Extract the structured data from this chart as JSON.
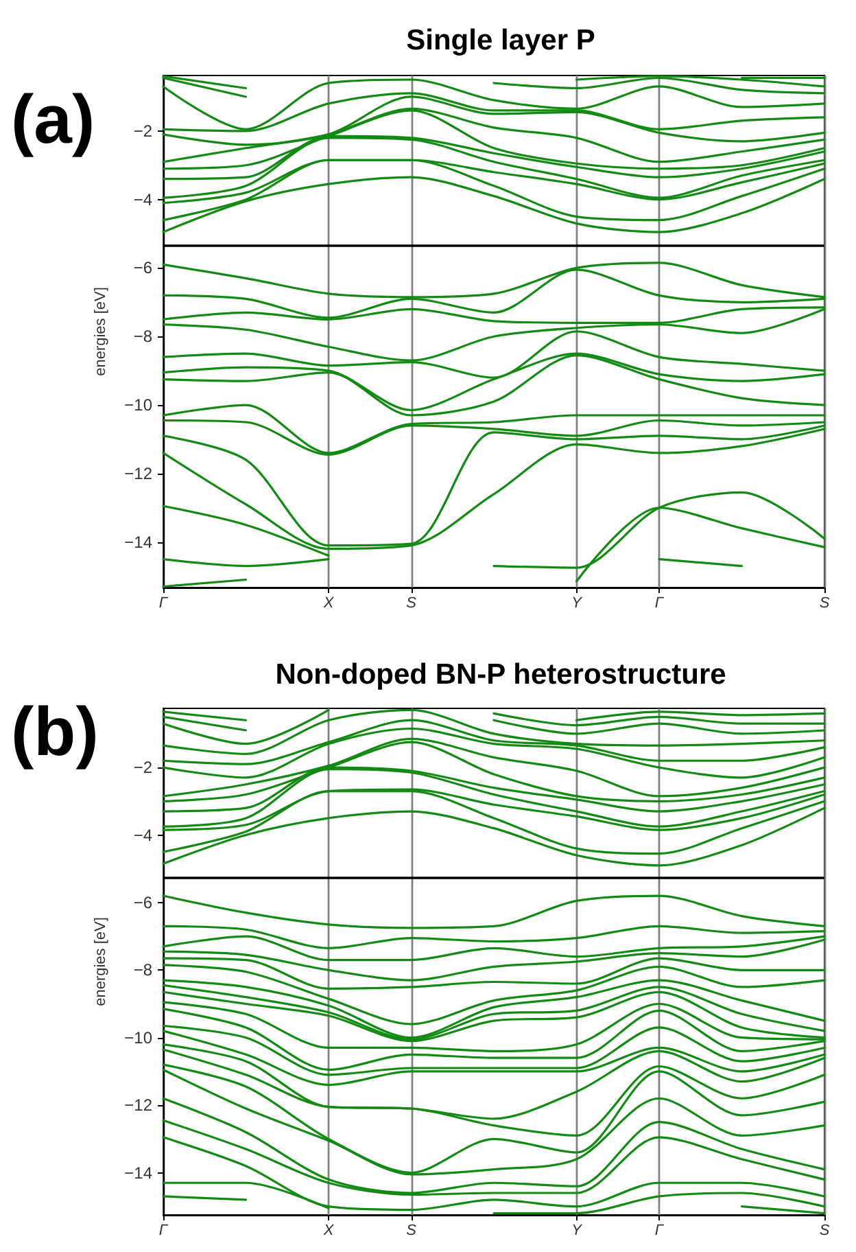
{
  "chart_data": [
    {
      "type": "line",
      "title": "Single layer P",
      "ylabel": "energies [eV]",
      "annotations": [
        "(a)"
      ],
      "marker": "none",
      "grid": "x",
      "categories": [
        "Γ",
        null,
        "X",
        "S",
        null,
        "Y",
        "Γ",
        null,
        "S"
      ],
      "ylim": [
        -15.33,
        -0.38
      ],
      "yticks": [
        -14,
        -12,
        -10,
        -8,
        -6,
        -4,
        -2
      ],
      "ref_lines": [
        {
          "axis": "y",
          "value": -5.35,
          "color": "#000000"
        }
      ],
      "series": [
        {
          "color": "#138a13",
          "values": [
            -5.9,
            -6.3,
            -6.75,
            -6.85,
            -6.75,
            -6.0,
            -5.85,
            -6.5,
            -6.85
          ]
        },
        {
          "color": "#138a13",
          "values": [
            -6.8,
            -6.9,
            -7.45,
            -6.9,
            -7.3,
            -6.05,
            -6.8,
            -7.0,
            -6.9
          ]
        },
        {
          "color": "#138a13",
          "values": [
            -7.5,
            -7.3,
            -7.5,
            -7.2,
            -7.55,
            -7.6,
            -7.6,
            -7.2,
            -7.15
          ]
        },
        {
          "color": "#138a13",
          "values": [
            -7.65,
            -7.8,
            -8.3,
            -8.7,
            -8.0,
            -7.75,
            -7.65,
            -7.9,
            -7.2
          ]
        },
        {
          "color": "#138a13",
          "values": [
            -8.6,
            -8.5,
            -8.85,
            -8.75,
            -9.2,
            -7.85,
            -8.6,
            -8.8,
            -9.0
          ]
        },
        {
          "color": "#138a13",
          "values": [
            -9.05,
            -8.9,
            -9.0,
            -10.15,
            -9.25,
            -8.5,
            -9.1,
            -9.3,
            -9.1
          ]
        },
        {
          "color": "#138a13",
          "values": [
            -9.25,
            -9.3,
            -9.05,
            -10.3,
            -9.9,
            -8.55,
            -9.25,
            -9.8,
            -10.0
          ]
        },
        {
          "color": "#138a13",
          "values": [
            -10.3,
            -10.0,
            -11.4,
            -10.55,
            -10.5,
            -10.3,
            -10.3,
            -10.3,
            -10.3
          ]
        },
        {
          "color": "#138a13",
          "values": [
            -10.45,
            -10.5,
            -11.45,
            -10.6,
            -10.7,
            -10.9,
            -10.45,
            -10.6,
            -10.5
          ]
        },
        {
          "color": "#138a13",
          "values": [
            -10.9,
            -11.6,
            -14.1,
            -14.05,
            -10.8,
            -11.0,
            -10.9,
            -11.0,
            -10.6
          ]
        },
        {
          "color": "#138a13",
          "values": [
            -11.4,
            -12.9,
            -14.2,
            -14.1,
            -12.6,
            -11.15,
            -11.4,
            -11.2,
            -10.7
          ]
        },
        {
          "color": "#138a13",
          "values": [
            -12.95,
            -13.5,
            -14.4,
            null,
            -14.7,
            -14.75,
            -13.0,
            -12.55,
            -13.9
          ]
        },
        {
          "color": "#138a13",
          "values": [
            -14.5,
            -14.7,
            -14.5,
            null,
            null,
            -15.15,
            -13.0,
            -13.6,
            -14.15
          ]
        },
        {
          "color": "#138a13",
          "values": [
            -15.3,
            -15.1,
            null,
            null,
            null,
            null,
            -14.5,
            -14.7,
            null
          ]
        },
        {
          "color": "#138a13",
          "values": [
            -4.95,
            -4.05,
            -3.55,
            -3.35,
            -3.9,
            -4.7,
            -4.95,
            -4.4,
            -3.4
          ]
        },
        {
          "color": "#138a13",
          "values": [
            -4.6,
            -4.0,
            -2.85,
            -2.85,
            -3.6,
            -4.5,
            -4.6,
            -3.9,
            -3.1
          ]
        },
        {
          "color": "#138a13",
          "values": [
            -4.1,
            -3.8,
            -2.85,
            -2.85,
            -3.2,
            -3.55,
            -4.0,
            -3.5,
            -2.95
          ]
        },
        {
          "color": "#138a13",
          "values": [
            -3.95,
            -3.6,
            -2.2,
            -2.25,
            -2.9,
            -3.4,
            -3.95,
            -3.3,
            -2.85
          ]
        },
        {
          "color": "#138a13",
          "values": [
            -3.4,
            -3.35,
            -2.15,
            -2.2,
            -2.65,
            -3.05,
            -3.35,
            -3.1,
            -2.6
          ]
        },
        {
          "color": "#138a13",
          "values": [
            -3.1,
            -3.0,
            -2.15,
            -1.4,
            -2.5,
            -2.95,
            -3.1,
            -3.0,
            -2.5
          ]
        },
        {
          "color": "#138a13",
          "values": [
            -2.9,
            -2.5,
            -2.1,
            -1.35,
            -1.9,
            -2.2,
            -2.9,
            -2.6,
            -2.25
          ]
        },
        {
          "color": "#138a13",
          "values": [
            -2.1,
            -2.4,
            -2.1,
            -1.0,
            -1.5,
            -1.45,
            -2.05,
            -2.3,
            -2.05
          ]
        },
        {
          "color": "#138a13",
          "values": [
            -1.95,
            -2.0,
            -1.2,
            -0.9,
            -1.4,
            -1.4,
            -1.95,
            -1.7,
            -1.6
          ]
        },
        {
          "color": "#138a13",
          "values": [
            -0.7,
            -1.95,
            -0.6,
            -0.5,
            -1.1,
            -1.35,
            -0.7,
            -1.3,
            -1.2
          ]
        },
        {
          "color": "#138a13",
          "values": [
            -0.45,
            -1.0,
            null,
            null,
            -0.6,
            -0.75,
            -0.45,
            -0.8,
            -0.9
          ]
        },
        {
          "color": "#138a13",
          "values": [
            -0.4,
            -0.75,
            null,
            null,
            null,
            -0.5,
            -0.4,
            -0.5,
            -0.7
          ]
        },
        {
          "color": "#138a13",
          "values": [
            null,
            null,
            null,
            null,
            null,
            null,
            null,
            -0.45,
            -0.45
          ]
        }
      ]
    },
    {
      "type": "line",
      "title": "Non-doped BN-P heterostructure",
      "ylabel": "energies [eV]",
      "annotations": [
        "(b)"
      ],
      "marker": "none",
      "grid": "x",
      "categories": [
        "Γ",
        null,
        "X",
        "S",
        null,
        "Y",
        "Γ",
        null,
        "S"
      ],
      "ylim": [
        -15.25,
        -0.25
      ],
      "yticks": [
        -14,
        -12,
        -10,
        -8,
        -6,
        -4,
        -2
      ],
      "ref_lines": [
        {
          "axis": "y",
          "value": -5.27,
          "color": "#000000"
        }
      ],
      "series": [
        {
          "color": "#138a13",
          "values": [
            -5.8,
            -6.3,
            -6.65,
            -6.75,
            -6.7,
            -5.95,
            -5.8,
            -6.4,
            -6.7
          ]
        },
        {
          "color": "#138a13",
          "values": [
            -6.7,
            -6.8,
            -7.35,
            -7.05,
            -7.15,
            -7.05,
            -6.7,
            -6.9,
            -6.85
          ]
        },
        {
          "color": "#138a13",
          "values": [
            -7.3,
            -7.0,
            -7.7,
            -7.7,
            -7.35,
            -7.6,
            -7.35,
            -7.3,
            -7.0
          ]
        },
        {
          "color": "#138a13",
          "values": [
            -7.45,
            -7.55,
            -8.0,
            -8.3,
            -7.9,
            -7.75,
            -7.5,
            -7.6,
            -7.1
          ]
        },
        {
          "color": "#138a13",
          "values": [
            -7.65,
            -7.7,
            -8.55,
            -8.5,
            -8.35,
            -8.4,
            -7.65,
            -8.0,
            -8.0
          ]
        },
        {
          "color": "#138a13",
          "values": [
            -7.85,
            -8.05,
            -8.85,
            -9.6,
            -8.9,
            -8.6,
            -7.9,
            -8.5,
            -8.3
          ]
        },
        {
          "color": "#138a13",
          "values": [
            -8.3,
            -8.5,
            -9.05,
            -10.0,
            -9.1,
            -8.8,
            -8.3,
            -8.9,
            -9.5
          ]
        },
        {
          "color": "#138a13",
          "values": [
            -8.45,
            -8.8,
            -9.25,
            -10.05,
            -9.3,
            -9.2,
            -8.5,
            -9.3,
            -9.8
          ]
        },
        {
          "color": "#138a13",
          "values": [
            -8.65,
            -9.0,
            -9.35,
            -10.1,
            -9.5,
            -9.4,
            -8.65,
            -9.7,
            -10.0
          ]
        },
        {
          "color": "#138a13",
          "values": [
            -8.95,
            -9.3,
            -10.3,
            -10.3,
            -10.4,
            -10.2,
            -9.0,
            -10.0,
            -10.05
          ]
        },
        {
          "color": "#138a13",
          "values": [
            -9.15,
            -9.7,
            -10.95,
            -10.5,
            -10.6,
            -10.6,
            -9.2,
            -10.4,
            -10.1
          ]
        },
        {
          "color": "#138a13",
          "values": [
            -9.65,
            -10.0,
            -11.1,
            -10.9,
            -10.9,
            -10.9,
            -9.7,
            -10.7,
            -10.3
          ]
        },
        {
          "color": "#138a13",
          "values": [
            -9.8,
            -10.5,
            -11.4,
            -11.0,
            -11.0,
            -11.0,
            -10.3,
            -11.0,
            -10.5
          ]
        },
        {
          "color": "#138a13",
          "values": [
            -10.2,
            -10.7,
            -12.05,
            -12.1,
            -12.4,
            -11.6,
            -10.4,
            -11.3,
            -10.6
          ]
        },
        {
          "color": "#138a13",
          "values": [
            -10.35,
            -11.1,
            -12.05,
            -12.1,
            -12.6,
            -12.9,
            -10.85,
            -11.8,
            -11.1
          ]
        },
        {
          "color": "#138a13",
          "values": [
            -10.8,
            -11.45,
            -13.0,
            -14.0,
            -13.0,
            -13.4,
            -11.0,
            -12.3,
            -11.9
          ]
        },
        {
          "color": "#138a13",
          "values": [
            -10.95,
            -12.1,
            -13.05,
            -14.05,
            -13.9,
            -13.6,
            -11.8,
            -12.9,
            -12.6
          ]
        },
        {
          "color": "#138a13",
          "values": [
            -11.8,
            -12.8,
            -14.2,
            -14.6,
            -14.3,
            -14.4,
            -12.5,
            -13.3,
            -13.9
          ]
        },
        {
          "color": "#138a13",
          "values": [
            -12.45,
            -13.3,
            -14.3,
            -14.65,
            -14.6,
            -14.6,
            -12.95,
            -13.6,
            -14.2
          ]
        },
        {
          "color": "#138a13",
          "values": [
            -12.95,
            -13.8,
            -15.0,
            -15.1,
            -14.8,
            -15.0,
            -14.3,
            -14.3,
            -14.7
          ]
        },
        {
          "color": "#138a13",
          "values": [
            -14.3,
            -14.3,
            -15.05,
            null,
            -15.2,
            -15.2,
            -14.7,
            -14.6,
            -15.0
          ]
        },
        {
          "color": "#138a13",
          "values": [
            -14.7,
            -14.8,
            null,
            null,
            null,
            null,
            null,
            -15.0,
            -15.2
          ]
        },
        {
          "color": "#138a13",
          "values": [
            -4.85,
            -4.0,
            -3.5,
            -3.3,
            -3.8,
            -4.6,
            -4.9,
            -4.3,
            -3.2
          ]
        },
        {
          "color": "#138a13",
          "values": [
            -4.5,
            -3.9,
            -2.7,
            -2.7,
            -3.5,
            -4.4,
            -4.55,
            -3.8,
            -3.0
          ]
        },
        {
          "color": "#138a13",
          "values": [
            -3.85,
            -3.7,
            -2.7,
            -2.65,
            -3.1,
            -3.45,
            -3.85,
            -3.5,
            -2.8
          ]
        },
        {
          "color": "#138a13",
          "values": [
            -3.75,
            -3.5,
            -2.05,
            -2.15,
            -2.8,
            -3.3,
            -3.75,
            -3.3,
            -2.7
          ]
        },
        {
          "color": "#138a13",
          "values": [
            -3.3,
            -3.2,
            -2.0,
            -2.1,
            -2.6,
            -2.95,
            -3.3,
            -3.0,
            -2.5
          ]
        },
        {
          "color": "#138a13",
          "values": [
            -3.0,
            -2.8,
            -2.0,
            -1.25,
            -2.2,
            -2.85,
            -3.0,
            -2.8,
            -2.3
          ]
        },
        {
          "color": "#138a13",
          "values": [
            -2.85,
            -2.5,
            -1.95,
            -1.15,
            -1.7,
            -2.1,
            -2.85,
            -2.6,
            -2.0
          ]
        },
        {
          "color": "#138a13",
          "values": [
            -2.0,
            -2.3,
            -1.3,
            -0.85,
            -1.3,
            -1.45,
            -2.0,
            -2.3,
            -1.7
          ]
        },
        {
          "color": "#138a13",
          "values": [
            -1.8,
            -1.9,
            -1.25,
            -0.6,
            -1.2,
            -1.35,
            -1.8,
            -1.8,
            -1.4
          ]
        },
        {
          "color": "#138a13",
          "values": [
            -1.35,
            -1.6,
            -0.6,
            -0.3,
            -1.0,
            -1.3,
            -1.35,
            -1.3,
            -1.2
          ]
        },
        {
          "color": "#138a13",
          "values": [
            -0.7,
            -1.3,
            -0.3,
            null,
            -0.6,
            -1.0,
            -0.7,
            -1.0,
            -0.9
          ]
        },
        {
          "color": "#138a13",
          "values": [
            -0.5,
            -0.9,
            null,
            null,
            -0.4,
            -0.75,
            -0.5,
            -0.7,
            -0.7
          ]
        },
        {
          "color": "#138a13",
          "values": [
            -0.35,
            -0.6,
            null,
            null,
            null,
            -0.6,
            -0.35,
            -0.45,
            -0.4
          ]
        }
      ]
    }
  ]
}
